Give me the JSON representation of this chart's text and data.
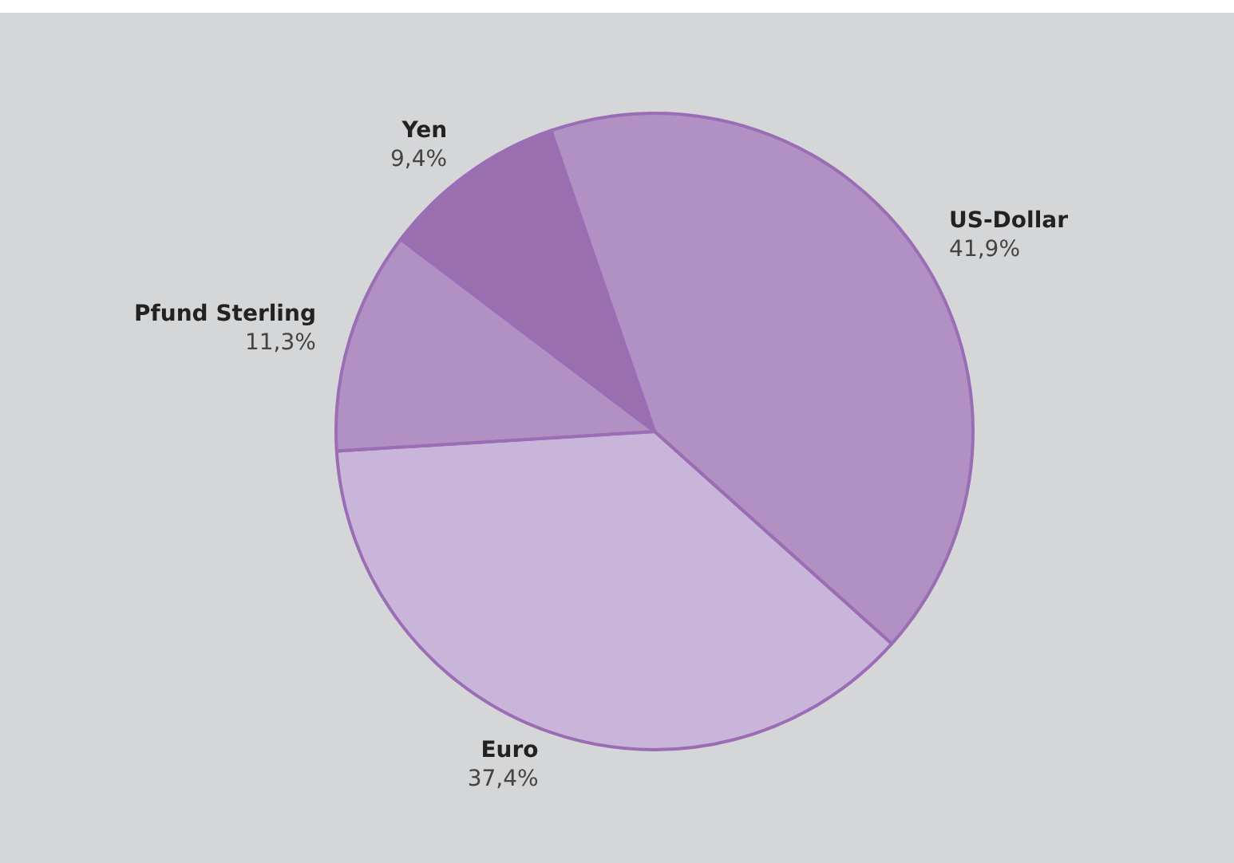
{
  "chart_data": {
    "type": "pie",
    "categories": [
      "US-Dollar",
      "Euro",
      "Pfund Sterling",
      "Yen"
    ],
    "values": [
      41.9,
      37.4,
      11.3,
      9.4
    ],
    "colors": [
      "#b190c4",
      "#cab5da",
      "#b190c4",
      "#9a6fb0"
    ],
    "value_labels": [
      "41,9%",
      "37,4%",
      "11,3%",
      "9,4%"
    ],
    "legend": false
  }
}
